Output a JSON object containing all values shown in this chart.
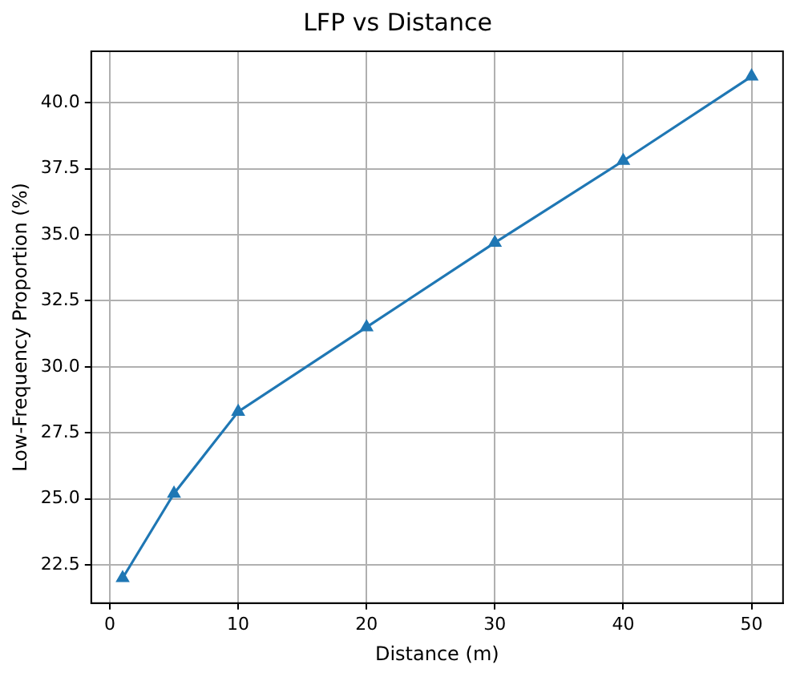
{
  "chart_data": {
    "type": "line",
    "title": "LFP vs Distance",
    "xlabel": "Distance (m)",
    "ylabel": "Low-Frequency Proportion (%)",
    "x": [
      1,
      5,
      10,
      20,
      30,
      40,
      50
    ],
    "series": [
      {
        "color": "#1f77b4",
        "values": [
          22.0,
          25.2,
          28.3,
          31.5,
          34.7,
          37.8,
          41.0
        ]
      }
    ],
    "xlim": [
      -1.45,
      52.45
    ],
    "xticks": [
      0,
      10,
      20,
      30,
      40,
      50
    ],
    "ylim": [
      21.05,
      41.95
    ],
    "yticks": [
      22.5,
      {
        "value": 25,
        "label": "25.0"
      },
      27.5,
      {
        "value": 30,
        "label": "30.0"
      },
      32.5,
      {
        "value": 35,
        "label": "35.0"
      },
      37.5,
      {
        "value": 40,
        "label": "40.0"
      }
    ],
    "grid": true,
    "marker": "triangle",
    "line_style": "solid"
  }
}
